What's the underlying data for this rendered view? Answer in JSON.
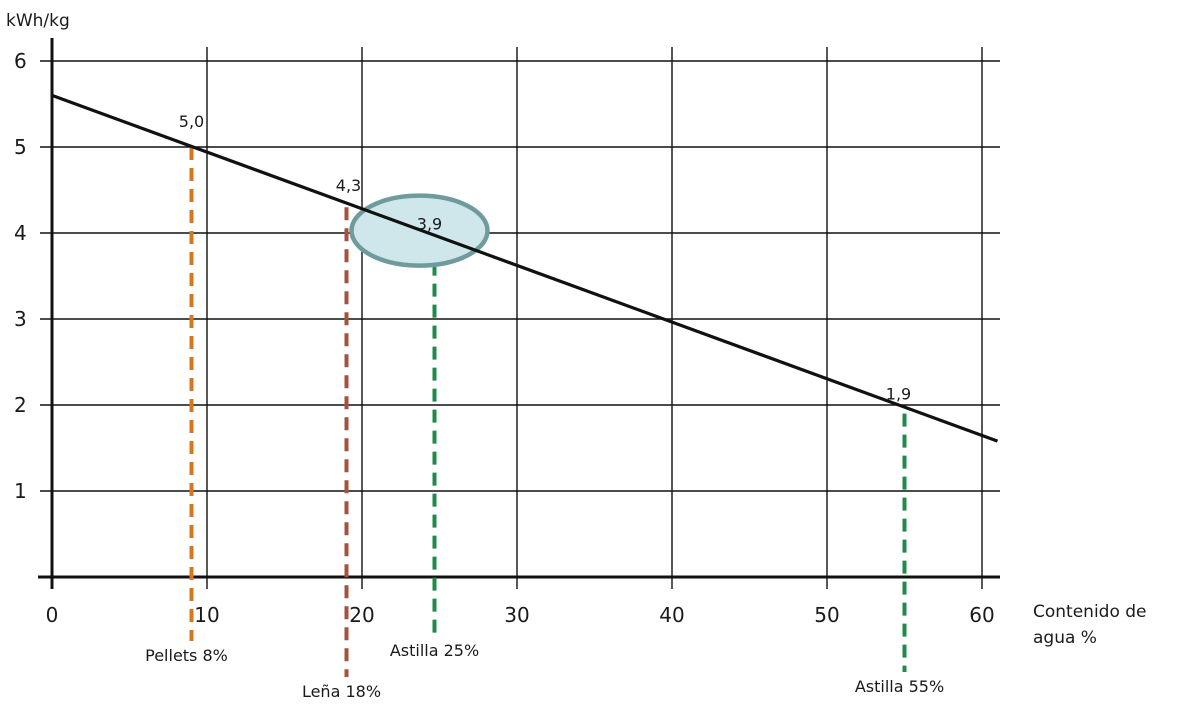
{
  "chart_data": {
    "type": "line",
    "ylabel": "kWh/kg",
    "xlabel_line1": "Contenido de",
    "xlabel_line2": "agua %",
    "xlim": [
      0,
      60
    ],
    "ylim": [
      0,
      6
    ],
    "x_ticks": [
      "0",
      "10",
      "20",
      "30",
      "40",
      "50",
      "60"
    ],
    "y_ticks": [
      "1",
      "2",
      "3",
      "4",
      "5",
      "6"
    ],
    "grid": true,
    "line": {
      "x": [
        0,
        61
      ],
      "y": [
        5.6,
        1.58
      ],
      "color": "#111111"
    },
    "markers": [
      {
        "x": 9,
        "y": 5.0,
        "value_label": "5,0",
        "category_label": "Pellets 8%",
        "color": "#d8761f"
      },
      {
        "x": 19,
        "y": 4.3,
        "value_label": "4,3",
        "category_label": "Leña 18%",
        "color": "#a5523c"
      },
      {
        "x": 25,
        "y": 3.9,
        "value_label": "3,9",
        "category_label": "Astilla 25%",
        "color": "#1f8a4a",
        "highlighted": true
      },
      {
        "x": 55,
        "y": 1.9,
        "value_label": "1,9",
        "category_label": "Astilla 55%",
        "color": "#1f8a4a"
      }
    ],
    "highlight": {
      "fill": "#cfe7ea",
      "stroke": "#6f9b9c"
    }
  }
}
